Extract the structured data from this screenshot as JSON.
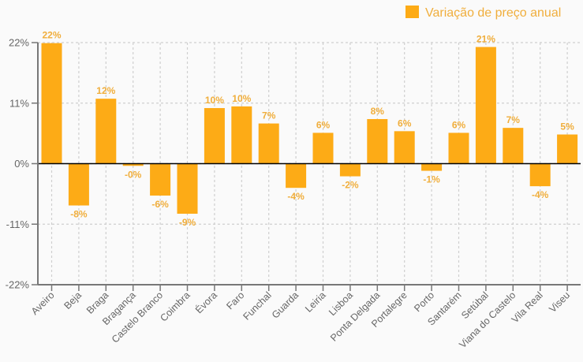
{
  "chart_data": {
    "type": "bar",
    "title": "",
    "xlabel": "",
    "ylabel": "",
    "legend": {
      "position": "top-right",
      "entries": [
        "Variação de preço anual"
      ]
    },
    "colors": {
      "bar": "#fdab16",
      "label": "#f0ae3c",
      "axis": "#777777",
      "zero_line": "#000000",
      "grid": "#cfcfcf"
    },
    "ylim": [
      -22,
      22
    ],
    "yticks": [
      22,
      11,
      0,
      -11,
      -22
    ],
    "ytick_labels": [
      "22%",
      "11%",
      "0%",
      "-11%",
      "-22%"
    ],
    "grid": true,
    "categories": [
      "Aveiro",
      "Beja",
      "Braga",
      "Bragança",
      "Castelo Branco",
      "Coimbra",
      "Évora",
      "Faro",
      "Funchal",
      "Guarda",
      "Leiria",
      "Lisboa",
      "Ponta Delgada",
      "Portalegre",
      "Porto",
      "Santarém",
      "Setúbal",
      "Viana do Castelo",
      "Vila Real",
      "Viseu"
    ],
    "series": [
      {
        "name": "Variação de preço anual",
        "values": [
          21.9,
          -7.6,
          11.8,
          -0.4,
          -5.8,
          -9.1,
          10.1,
          10.4,
          7.3,
          -4.4,
          5.6,
          -2.3,
          8.1,
          5.9,
          -1.3,
          5.6,
          21.2,
          6.5,
          -4.1,
          5.3
        ],
        "data_labels": [
          "22%",
          "-8%",
          "12%",
          "-0%",
          "-6%",
          "-9%",
          "10%",
          "10%",
          "7%",
          "-4%",
          "6%",
          "-2%",
          "8%",
          "6%",
          "-1%",
          "6%",
          "21%",
          "7%",
          "-4%",
          "5%"
        ]
      }
    ]
  }
}
